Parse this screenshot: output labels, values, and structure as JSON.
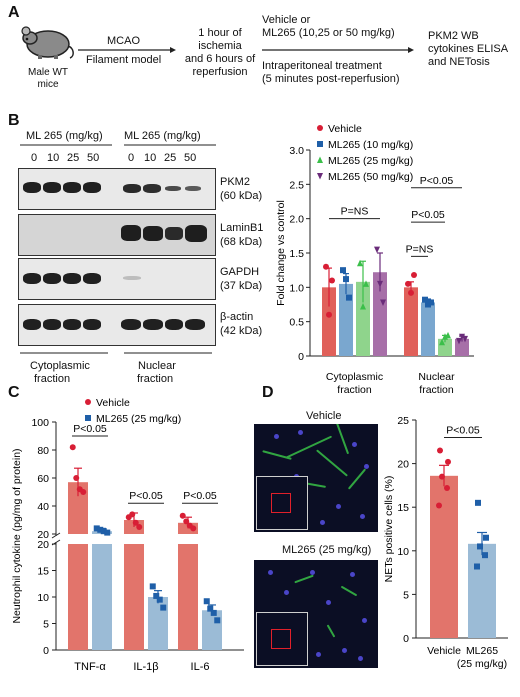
{
  "panels": {
    "a": "A",
    "b": "B",
    "c": "C",
    "d": "D"
  },
  "schematic": {
    "mouse_label": [
      "Male WT",
      "mice"
    ],
    "step1": [
      "MCAO",
      "Filament model"
    ],
    "step2": [
      "1 hour of",
      "ischemia",
      "and 6 hours of",
      "reperfusion"
    ],
    "step3_top": [
      "Vehicle or",
      "ML265 (10,25 or 50 mg/kg)"
    ],
    "step3_bottom": [
      "Intraperitoneal treatment",
      "(5 minutes post-reperfusion)"
    ],
    "step4": [
      "PKM2 WB",
      "cytokines ELISA",
      "and NETosis"
    ]
  },
  "western": {
    "header": "ML 265 (mg/kg)",
    "doses": [
      "0",
      "10",
      "25",
      "50"
    ],
    "blots": [
      {
        "name": "PKM2",
        "size": "(60 kDa)"
      },
      {
        "name": "LaminB1",
        "size": "(68 kDa)"
      },
      {
        "name": "GAPDH",
        "size": "(37 kDa)"
      },
      {
        "name": "β-actin",
        "size": "(42 kDa)"
      }
    ],
    "fractions": [
      [
        "Cytoplasmic",
        "fraction"
      ],
      [
        "Nuclear",
        "fraction"
      ]
    ]
  },
  "colors": {
    "vehicle": "#e0605a",
    "ml10": "#7aa7cf",
    "ml25": "#8fd48c",
    "ml50": "#a76fa8",
    "vehicle_dot": "#d81e35",
    "ml10_dot": "#1f5fa8",
    "ml25_dot": "#3bbf4a",
    "ml50_dot": "#6a2c7a",
    "c_vehicle": "#e2746b",
    "c_ml": "#9bbbd6",
    "c_ml_dot": "#1f5fa8"
  },
  "chart_data": [
    {
      "type": "bar",
      "panel": "B",
      "ylabel": "Fold change vs control",
      "ylim": [
        0,
        3.0
      ],
      "yticks": [
        "0",
        "0.5",
        "1.0",
        "1.5",
        "2.0",
        "2.5",
        "3.0"
      ],
      "groups": [
        [
          "Cytoplasmic",
          "fraction"
        ],
        [
          "Nuclear",
          "fraction"
        ]
      ],
      "series": [
        {
          "name": "Vehicle",
          "values": [
            1.0,
            1.0
          ],
          "errors": [
            0.28,
            0.08
          ],
          "points": [
            [
              1.3,
              0.6,
              1.1
            ],
            [
              1.05,
              0.92,
              1.18
            ]
          ]
        },
        {
          "name": "ML265 (10 mg/kg)",
          "values": [
            1.05,
            0.78
          ],
          "errors": [
            0.15,
            0.05
          ],
          "points": [
            [
              1.25,
              1.12,
              0.85
            ],
            [
              0.82,
              0.75,
              0.78
            ]
          ]
        },
        {
          "name": "ML265 (25 mg/kg)",
          "values": [
            1.08,
            0.25
          ],
          "errors": [
            0.3,
            0.05
          ],
          "points": [
            [
              1.35,
              0.72,
              1.05
            ],
            [
              0.2,
              0.28,
              0.3
            ]
          ]
        },
        {
          "name": "ML265 (50 mg/kg)",
          "values": [
            1.22,
            0.25
          ],
          "errors": [
            0.28,
            0.04
          ],
          "points": [
            [
              1.55,
              1.05,
              0.78
            ],
            [
              0.22,
              0.28,
              0.25
            ]
          ]
        }
      ],
      "annotations": [
        {
          "text": "P=NS",
          "group": 0,
          "from": 0,
          "to": 3
        },
        {
          "text": "P=NS",
          "group": 1,
          "from": 0,
          "to": 1
        },
        {
          "text": "P<0.05",
          "group": 1,
          "from": 0,
          "to": 2
        },
        {
          "text": "P<0.05",
          "group": 1,
          "from": 0,
          "to": 3
        }
      ]
    },
    {
      "type": "bar",
      "panel": "C",
      "ylabel": "Neutrophil cytokine (pg/mg of protein)",
      "axis_break": true,
      "yticks_top": [
        "20",
        "40",
        "60",
        "80",
        "100"
      ],
      "yticks_bottom": [
        "0",
        "5",
        "10",
        "15",
        "20"
      ],
      "categories": [
        "TNF-α",
        "IL-1β",
        "IL-6"
      ],
      "series": [
        {
          "name": "Vehicle",
          "values": [
            57,
            30,
            28
          ],
          "errors": [
            10,
            5,
            4
          ],
          "points": [
            [
              82,
              60,
              52,
              50
            ],
            [
              32,
              34,
              28,
              25
            ],
            [
              33,
              29,
              26,
              24
            ]
          ]
        },
        {
          "name": "ML265 (25 mg/kg)",
          "values": [
            22,
            10,
            7.5
          ],
          "errors": [
            2,
            1.2,
            1.0
          ],
          "points": [
            [
              24,
              23,
              22,
              21
            ],
            [
              12,
              10.2,
              9.5,
              8
            ],
            [
              9.2,
              7.8,
              7,
              5.6
            ]
          ]
        }
      ],
      "annotations": [
        "P<0.05",
        "P<0.05",
        "P<0.05"
      ]
    },
    {
      "type": "bar",
      "panel": "D",
      "ylabel": "NETs positive cells (%)",
      "ylim": [
        0,
        25
      ],
      "yticks": [
        "0",
        "5",
        "10",
        "15",
        "20",
        "25"
      ],
      "categories": [
        [
          "Vehicle"
        ],
        [
          "ML265",
          "(25 mg/kg)"
        ]
      ],
      "values": [
        18.6,
        10.8
      ],
      "errors": [
        1.2,
        1.3
      ],
      "points": [
        [
          21.5,
          20.2,
          18.5,
          17.2,
          15.2
        ],
        [
          15.5,
          11.5,
          10.5,
          9.5,
          8.2
        ]
      ],
      "annotation": "P<0.05"
    }
  ],
  "micrographs": {
    "top_label": "Vehicle",
    "bottom_label": "ML265 (25 mg/kg)"
  }
}
